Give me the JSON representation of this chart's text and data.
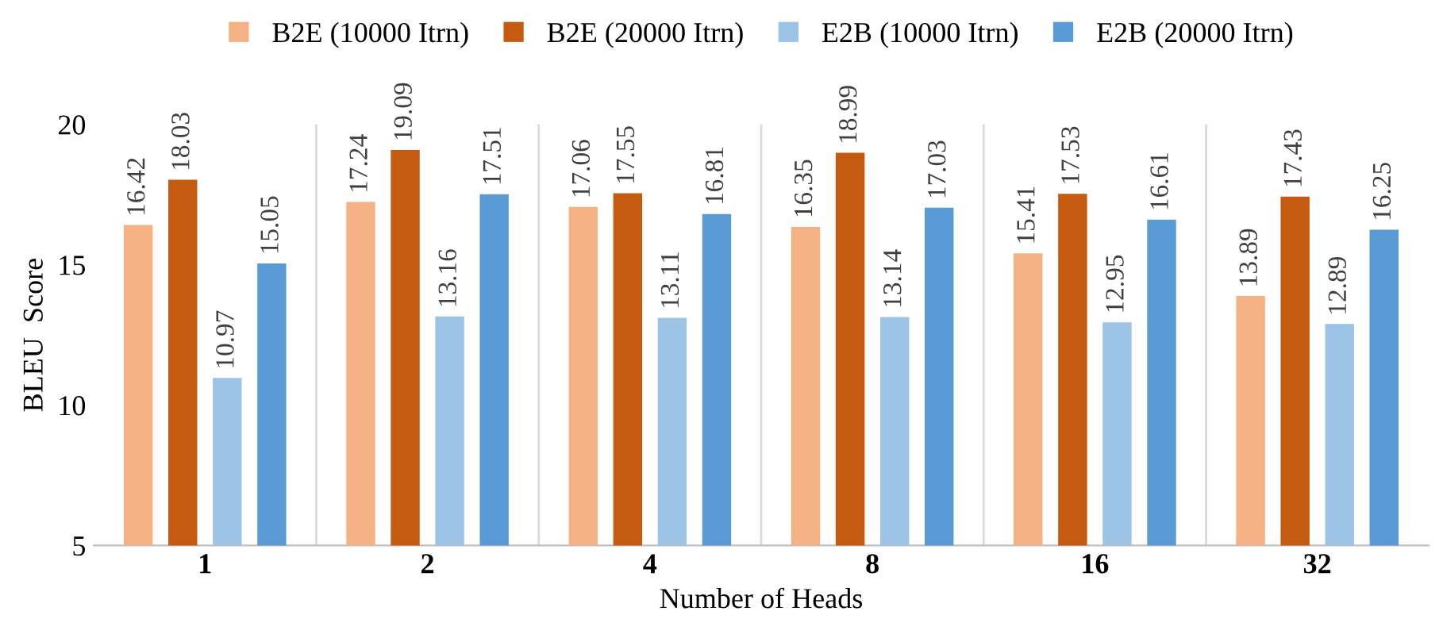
{
  "chart_data": {
    "type": "bar",
    "xlabel": "Number of Heads",
    "ylabel": "BLEU  Score",
    "categories": [
      "1",
      "2",
      "4",
      "8",
      "16",
      "32"
    ],
    "series": [
      {
        "name": "B2E (10000 Itrn)",
        "color": "#f4b183",
        "values": [
          16.42,
          17.24,
          17.06,
          16.35,
          15.41,
          13.89
        ]
      },
      {
        "name": "B2E (20000 Itrn)",
        "color": "#c55a11",
        "values": [
          18.03,
          19.09,
          17.55,
          18.99,
          17.53,
          17.43
        ]
      },
      {
        "name": "E2B (10000 Itrn)",
        "color": "#9dc3e6",
        "values": [
          10.97,
          13.16,
          13.11,
          13.14,
          12.95,
          12.89
        ]
      },
      {
        "name": "E2B (20000 Itrn)",
        "color": "#5b9bd5",
        "values": [
          15.05,
          17.51,
          16.81,
          17.03,
          16.61,
          16.25
        ]
      }
    ],
    "ylim": [
      5,
      20
    ],
    "yticks": [
      5,
      10,
      15,
      20
    ],
    "grid": "x",
    "legend": "top",
    "data_labels": true
  }
}
